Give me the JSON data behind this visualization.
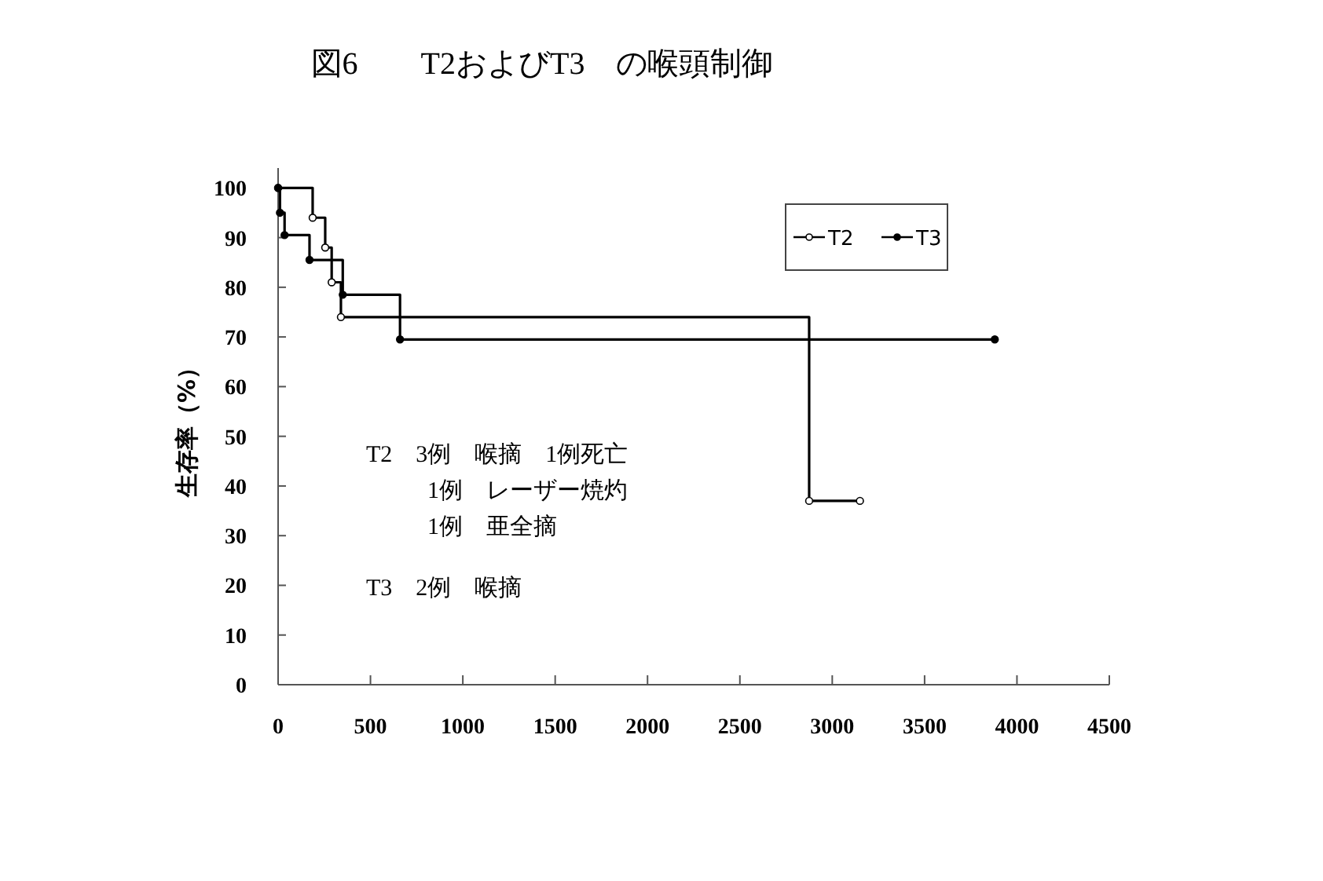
{
  "chart_data": {
    "type": "step",
    "title": "図6　　T2およびT3　の喉頭制御",
    "ylabel": "生存率（%）",
    "xlim": [
      0,
      4500
    ],
    "xticks": [
      0,
      500,
      1000,
      1500,
      2000,
      2500,
      3000,
      3500,
      4000,
      4500
    ],
    "ylim": [
      0,
      104
    ],
    "yticks": [
      0,
      10,
      20,
      30,
      40,
      50,
      60,
      70,
      80,
      90,
      100
    ],
    "grid": false,
    "legend": "top right",
    "marker": "circle",
    "series": [
      {
        "name": "T2",
        "color": "#000000",
        "x": [
          0,
          187,
          255,
          290,
          340,
          2875,
          3150
        ],
        "values": [
          100,
          94,
          88,
          81,
          74,
          37,
          37
        ]
      },
      {
        "name": "T3",
        "color": "#000000",
        "x": [
          0,
          10,
          35,
          170,
          350,
          660,
          3880
        ],
        "values": [
          100,
          95,
          90.5,
          85.5,
          78.5,
          69.5,
          69.5
        ]
      }
    ],
    "annotations": [
      "T2　3例　喉摘　1例死亡",
      "1例　レーザー焼灼",
      "1例　亜全摘",
      "T3　2例　喉摘"
    ]
  }
}
